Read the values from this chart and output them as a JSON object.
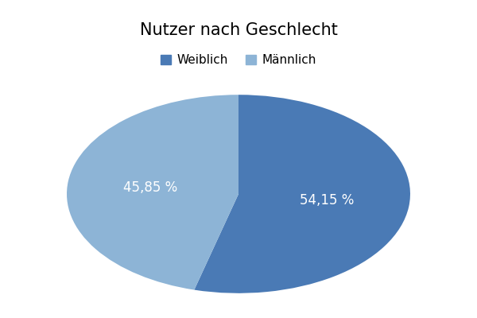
{
  "title": "Nutzer nach Geschlecht",
  "slices": [
    54.15,
    45.85
  ],
  "labels": [
    "Weiblich",
    "Männlich"
  ],
  "colors": [
    "#4a7ab5",
    "#8db4d6"
  ],
  "text_color": "#ffffff",
  "label_texts": [
    "54,15 %",
    "45,85 %"
  ],
  "startangle": 90,
  "background_color": "#ffffff",
  "title_fontsize": 15,
  "legend_fontsize": 11,
  "pct_fontsize": 12
}
